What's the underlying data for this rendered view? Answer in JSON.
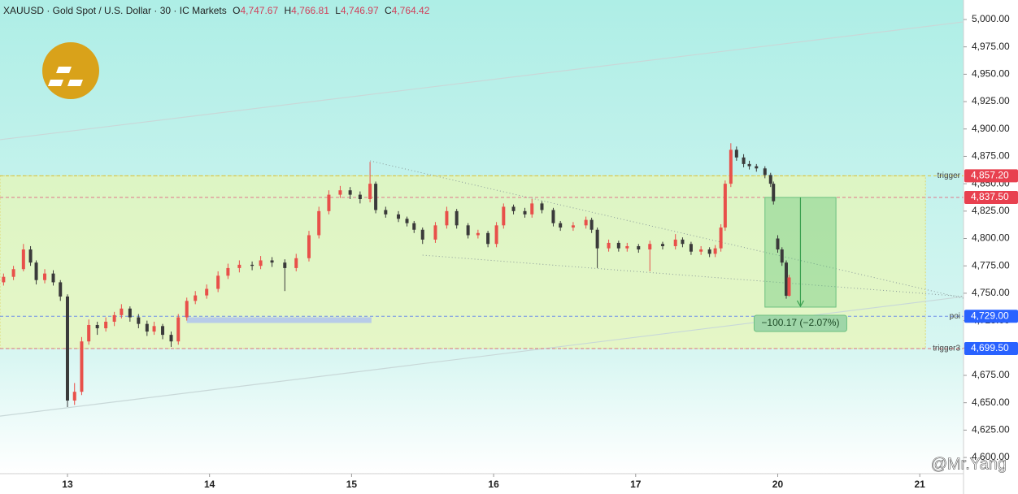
{
  "chart_data": {
    "type": "candlestick",
    "header": {
      "symbol": "XAUUSD · Gold Spot / U.S. Dollar · 30 · IC Markets",
      "ohlc": [
        {
          "key": "O",
          "value": "4,747.67"
        },
        {
          "key": "H",
          "value": "4,766.81"
        },
        {
          "key": "L",
          "value": "4,746.97"
        },
        {
          "key": "C",
          "value": "4,764.42"
        }
      ]
    },
    "watermark": "@Mr.Yang",
    "up_color": "#e8504a",
    "down_color": "#3a3a3a",
    "xlim": [
      -0.475,
      6.308
    ],
    "xticks": [
      {
        "value": 0,
        "label": "13"
      },
      {
        "value": 1,
        "label": "14"
      },
      {
        "value": 2,
        "label": "15"
      },
      {
        "value": 3,
        "label": "16"
      },
      {
        "value": 4,
        "label": "17"
      },
      {
        "value": 5,
        "label": "20"
      },
      {
        "value": 6,
        "label": "21"
      }
    ],
    "ylim": [
      4585.2,
      5017.8
    ],
    "yticks": [
      {
        "value": 4600,
        "label": "4,600.00"
      },
      {
        "value": 4625,
        "label": "4,625.00"
      },
      {
        "value": 4650,
        "label": "4,650.00"
      },
      {
        "value": 4675,
        "label": "4,675.00"
      },
      {
        "value": 4700,
        "label": "4,700.00"
      },
      {
        "value": 4725,
        "label": "4,725.00"
      },
      {
        "value": 4750,
        "label": "4,750.00"
      },
      {
        "value": 4775,
        "label": "4,775.00"
      },
      {
        "value": 4800,
        "label": "4,800.00"
      },
      {
        "value": 4825,
        "label": "4,825.00"
      },
      {
        "value": 4850,
        "label": "4,850.00"
      },
      {
        "value": 4875,
        "label": "4,875.00"
      },
      {
        "value": 4900,
        "label": "4,900.00"
      },
      {
        "value": 4925,
        "label": "4,925.00"
      },
      {
        "value": 4950,
        "label": "4,950.00"
      },
      {
        "value": 4975,
        "label": "4,975.00"
      },
      {
        "value": 5000,
        "label": "5,000.00"
      }
    ],
    "candles": {
      "x": [
        -0.45,
        -0.38,
        -0.31,
        -0.26,
        -0.22,
        -0.16,
        -0.1,
        -0.05,
        0,
        0.05,
        0.1,
        0.15,
        0.21,
        0.27,
        0.33,
        0.38,
        0.44,
        0.5,
        0.56,
        0.61,
        0.67,
        0.73,
        0.78,
        0.84,
        0.9,
        0.98,
        1.06,
        1.13,
        1.21,
        1.3,
        1.36,
        1.44,
        1.53,
        1.61,
        1.7,
        1.77,
        1.84,
        1.92,
        1.99,
        2.06,
        2.13,
        2.17,
        2.24,
        2.33,
        2.39,
        2.44,
        2.5,
        2.59,
        2.67,
        2.74,
        2.82,
        2.89,
        2.96,
        3.02,
        3.07,
        3.14,
        3.22,
        3.27,
        3.34,
        3.42,
        3.47,
        3.56,
        3.65,
        3.69,
        3.73,
        3.81,
        3.88,
        3.94,
        4.02,
        4.1,
        4.19,
        4.28,
        4.33,
        4.39,
        4.46,
        4.52,
        4.56,
        4.6,
        4.63,
        4.67,
        4.71,
        4.76,
        4.8,
        4.85,
        4.91,
        4.95,
        4.97,
        5.0,
        5.03,
        5.06,
        5.08
      ],
      "open": [
        4760,
        4765,
        4772,
        4790,
        4778,
        4762,
        4768,
        4760,
        4747,
        4652,
        4660,
        4706,
        4721,
        4718,
        4724,
        4730,
        4736,
        4728,
        4722,
        4715,
        4720,
        4712,
        4706,
        4728,
        4743,
        4748,
        4754,
        4766,
        4773,
        4776,
        4775,
        4780,
        4778,
        4773,
        4782,
        4803,
        4825,
        4840,
        4844,
        4840,
        4836,
        4850,
        4826,
        4822,
        4818,
        4814,
        4808,
        4799,
        4812,
        4825,
        4812,
        4803,
        4805,
        4795,
        4812,
        4829,
        4825,
        4822,
        4832,
        4826,
        4814,
        4810,
        4812,
        4817,
        4808,
        4791,
        4796,
        4791,
        4793,
        4790,
        4795,
        4793,
        4799,
        4795,
        4788,
        4790,
        4786,
        4791,
        4810,
        4850,
        4881,
        4874,
        4868,
        4866,
        4864,
        4858,
        4850,
        4800,
        4790,
        4778,
        4747.67
      ],
      "high": [
        4768,
        4775,
        4795,
        4793,
        4780,
        4772,
        4771,
        4762,
        4749,
        4668,
        4710,
        4726,
        4724,
        4728,
        4733,
        4740,
        4738,
        4731,
        4725,
        4724,
        4722,
        4715,
        4731,
        4746,
        4752,
        4758,
        4770,
        4777,
        4780,
        4779,
        4784,
        4783,
        4781,
        4786,
        4807,
        4829,
        4844,
        4848,
        4847,
        4843,
        4870,
        4852,
        4829,
        4825,
        4820,
        4816,
        4810,
        4815,
        4829,
        4827,
        4814,
        4808,
        4807,
        4815,
        4832,
        4831,
        4828,
        4836,
        4834,
        4828,
        4816,
        4815,
        4820,
        4819,
        4810,
        4799,
        4798,
        4796,
        4795,
        4798,
        4797,
        4804,
        4801,
        4797,
        4793,
        4792,
        4794,
        4813,
        4853,
        4887,
        4884,
        4877,
        4871,
        4868,
        4866,
        4860,
        4852,
        4803,
        4792,
        4780,
        4766.81
      ],
      "low": [
        4757,
        4762,
        4770,
        4775,
        4758,
        4759,
        4757,
        4743,
        4646,
        4648,
        4657,
        4703,
        4712,
        4715,
        4720,
        4727,
        4724,
        4718,
        4711,
        4712,
        4708,
        4701,
        4703,
        4725,
        4740,
        4745,
        4751,
        4763,
        4769,
        4771,
        4772,
        4774,
        4752,
        4770,
        4779,
        4800,
        4822,
        4837,
        4836,
        4832,
        4833,
        4823,
        4819,
        4815,
        4811,
        4805,
        4795,
        4796,
        4809,
        4809,
        4800,
        4800,
        4792,
        4792,
        4809,
        4822,
        4819,
        4819,
        4823,
        4811,
        4807,
        4807,
        4809,
        4805,
        4773,
        4788,
        4788,
        4788,
        4787,
        4770,
        4790,
        4790,
        4792,
        4785,
        4785,
        4783,
        4783,
        4788,
        4807,
        4847,
        4871,
        4865,
        4863,
        4861,
        4855,
        4847,
        4831,
        4787,
        4775,
        4745,
        4746.97
      ],
      "close": [
        4765,
        4772,
        4790,
        4778,
        4762,
        4768,
        4760,
        4747,
        4652,
        4660,
        4706,
        4721,
        4718,
        4724,
        4730,
        4736,
        4728,
        4722,
        4715,
        4720,
        4712,
        4706,
        4728,
        4743,
        4748,
        4754,
        4766,
        4773,
        4776,
        4775,
        4780,
        4778,
        4773,
        4782,
        4803,
        4825,
        4840,
        4844,
        4840,
        4836,
        4850,
        4826,
        4822,
        4818,
        4814,
        4808,
        4799,
        4812,
        4825,
        4812,
        4803,
        4805,
        4795,
        4812,
        4829,
        4825,
        4822,
        4832,
        4826,
        4814,
        4810,
        4812,
        4817,
        4808,
        4791,
        4796,
        4791,
        4793,
        4790,
        4795,
        4793,
        4799,
        4795,
        4788,
        4790,
        4786,
        4791,
        4810,
        4850,
        4881,
        4874,
        4868,
        4866,
        4864,
        4858,
        4850,
        4834,
        4790,
        4778,
        4747.67,
        4764.42
      ]
    },
    "levels": [
      {
        "name": "trigger",
        "value": 4857.2,
        "label": "4,857.20",
        "color": "#e8404f",
        "line_color": "#d9c23a"
      },
      {
        "value": 4837.5,
        "label": "4,837.50",
        "color": "#e8404f",
        "line_color": "#e0788a"
      },
      {
        "name": "poi",
        "value": 4729,
        "label": "4,729.00",
        "color": "#2962ff",
        "line_color": "#6f8fe8"
      },
      {
        "name": "trigger3",
        "value": 4699.5,
        "label": "4,699.50",
        "color": "#2962ff",
        "line_color": "#d9707a"
      }
    ],
    "zone": {
      "x": [
        -0.475,
        6.04
      ],
      "y": [
        4699.5,
        4857.2
      ]
    },
    "channel": [
      {
        "x": [
          -0.475,
          6.308
        ],
        "y": [
          4890.2,
          4997.8
        ]
      },
      {
        "x": [
          -0.475,
          6.308
        ],
        "y": [
          4637.8,
          4746.9
        ]
      }
    ],
    "triangle": [
      {
        "x": [
          2.13,
          6.308
        ],
        "y": [
          4870.9,
          4745.4
        ]
      },
      {
        "x": [
          2.5,
          6.308
        ],
        "y": [
          4784.8,
          4747
        ]
      }
    ],
    "poi_bar": {
      "x": [
        0.84,
        2.14
      ],
      "y": 4725.4
    },
    "measure": {
      "x": [
        4.91,
        5.41
      ],
      "from": 4837.5,
      "change": -100.17,
      "label": "−100.17 (−2.07%)"
    }
  }
}
